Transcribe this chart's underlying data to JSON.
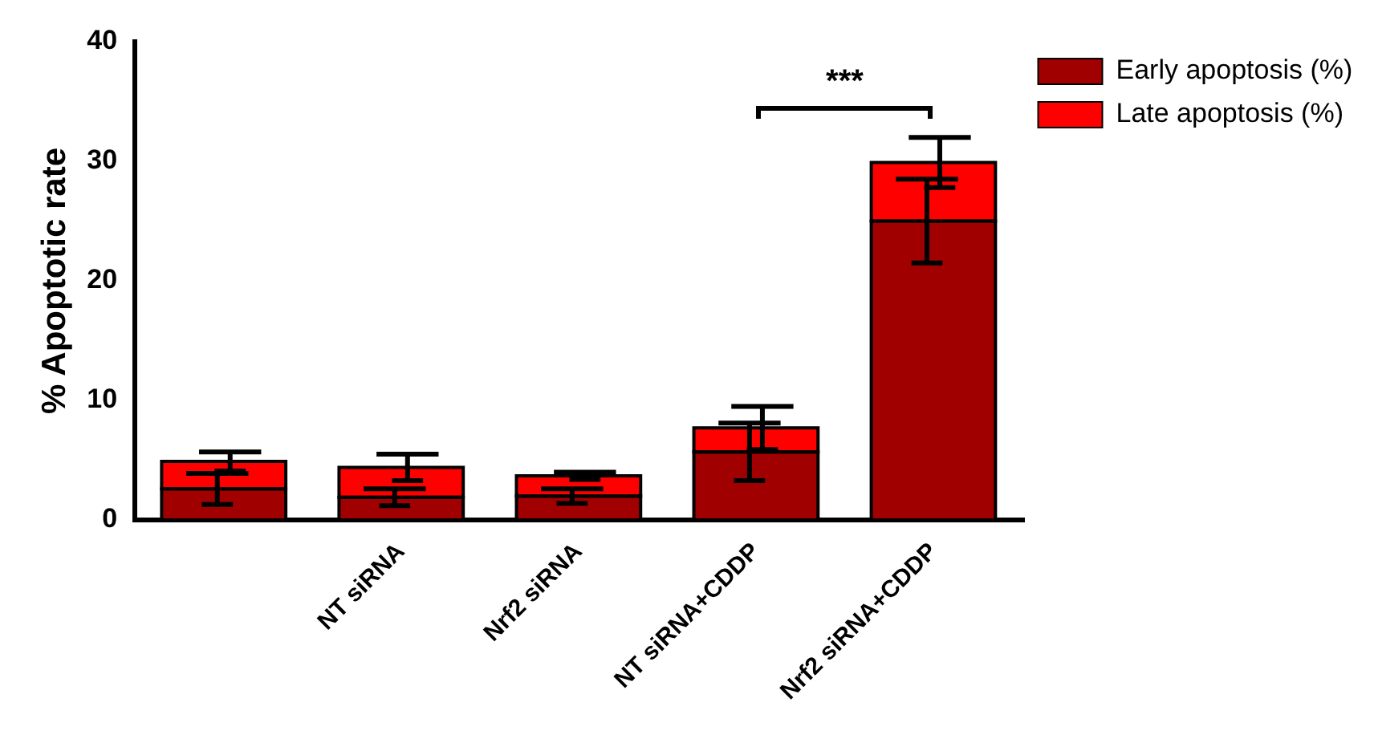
{
  "chart_data": {
    "type": "bar",
    "ylabel": "% Apoptotic rate",
    "categories": [
      null,
      "NT siRNA",
      "Nrf2 siRNA",
      "NT siRNA+CDDP",
      "Nrf2 siRNA+CDDP"
    ],
    "stacked": true,
    "series": [
      {
        "name": "Early apoptosis (%)",
        "color": "#a00000",
        "values": [
          2.6,
          1.9,
          2.0,
          5.7,
          25.0
        ],
        "errors": [
          1.3,
          0.7,
          0.6,
          2.4,
          3.5
        ]
      },
      {
        "name": "Late apoptosis (%)",
        "color": "#ff0000",
        "values": [
          2.3,
          2.5,
          1.7,
          2.0,
          4.9
        ],
        "errors": [
          0.8,
          1.1,
          0.3,
          1.8,
          2.1
        ]
      }
    ],
    "ylim": [
      0,
      40
    ],
    "yticks": [
      0,
      10,
      20,
      30,
      40
    ],
    "grid": false,
    "legend": "top right",
    "annotations": [
      "***"
    ]
  }
}
